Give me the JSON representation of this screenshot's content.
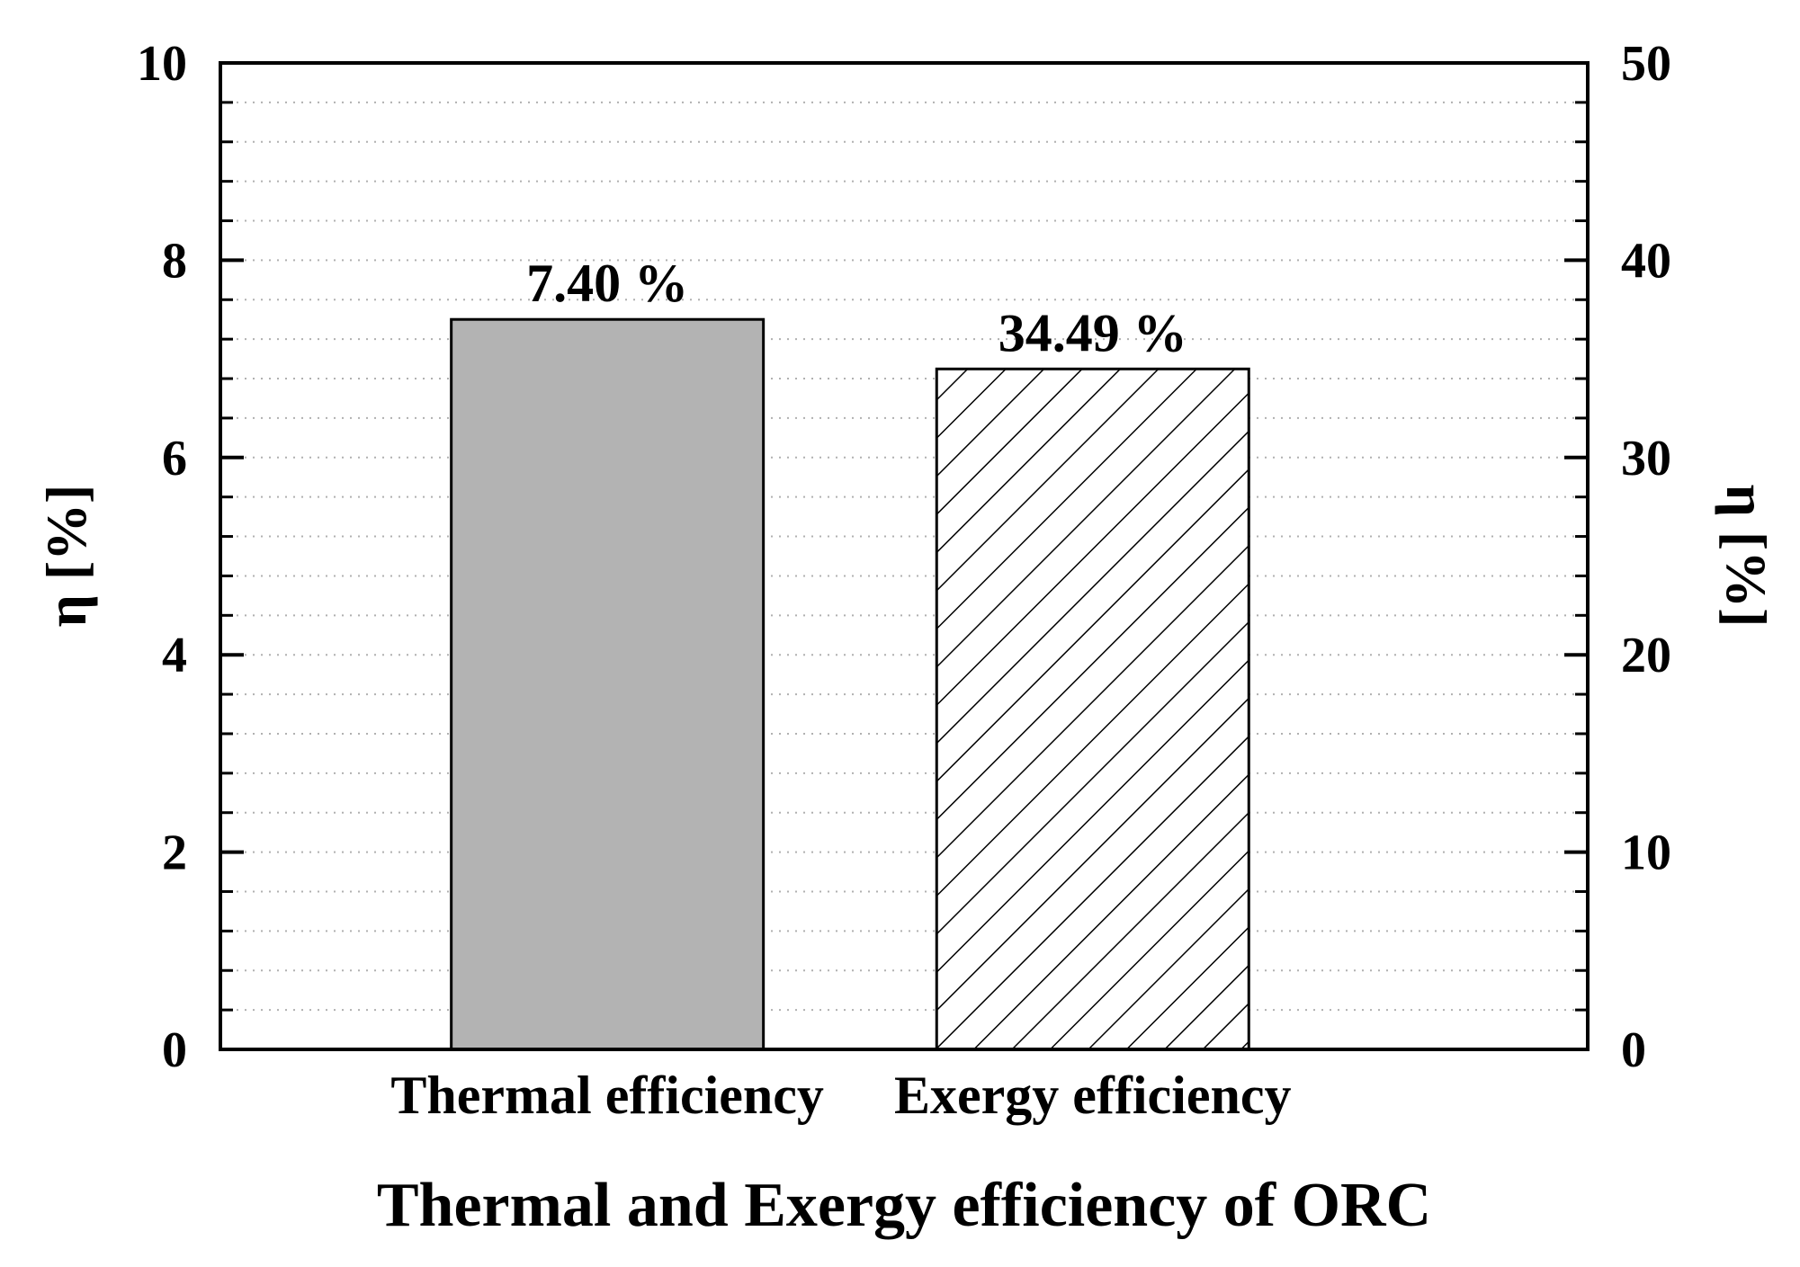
{
  "chart_data": {
    "type": "bar",
    "title": "",
    "categories": [
      "Thermal efficiency",
      "Exergy efficiency"
    ],
    "series": [
      {
        "name": "Thermal efficiency",
        "axis": "left",
        "values": [
          7.4,
          null
        ],
        "fill": "#b3b3b3",
        "pattern": "solid"
      },
      {
        "name": "Exergy efficiency",
        "axis": "right",
        "values": [
          null,
          34.49
        ],
        "fill": "#ffffff",
        "pattern": "diagonal-hatch"
      }
    ],
    "data_labels": [
      "7.40 %",
      "34.49 %"
    ],
    "xlabel": "Thermal and Exergy efficiency of ORC",
    "ylabel_left": "η [%]",
    "ylabel_right": "η [%]",
    "ylim_left": [
      0,
      10
    ],
    "ylim_right": [
      0,
      50
    ],
    "yticks_left": [
      "0",
      "2",
      "4",
      "6",
      "8",
      "10"
    ],
    "yticks_right": [
      "0",
      "10",
      "20",
      "30",
      "40",
      "50"
    ],
    "minor_step_left": 0.4,
    "grid": "dotted-horizontal",
    "legend": "none",
    "colors": {
      "axis": "#000000",
      "grid": "#b0b0b0",
      "thermal_fill": "#b3b3b3",
      "hatch": "#000000"
    }
  }
}
